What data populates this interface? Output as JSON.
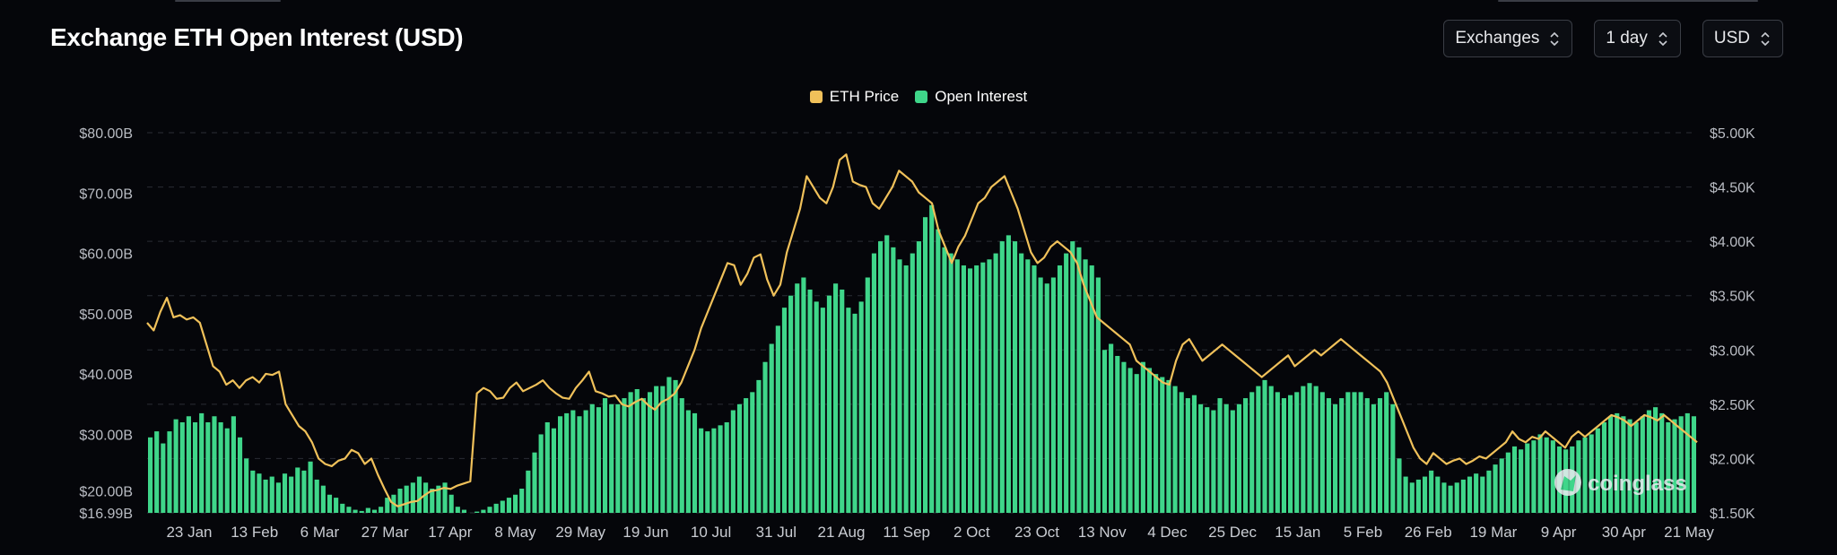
{
  "header": {
    "title": "Exchange ETH Open Interest (USD)",
    "controls": [
      {
        "label": "Exchanges"
      },
      {
        "label": "1 day"
      },
      {
        "label": "USD"
      }
    ]
  },
  "colors": {
    "price": "#f0c15a",
    "open_interest": "#3fd68a",
    "grid": "#2a2d35"
  },
  "watermark": {
    "text": "coinglass",
    "icon": "coinglass-logo-icon"
  },
  "chart_data": {
    "type": "bar",
    "legend_position": "top-center",
    "series": [
      {
        "name": "Open Interest",
        "type": "bar",
        "axis": "left",
        "values": [
          29.5,
          30.5,
          28.5,
          30.5,
          32.5,
          32,
          33,
          32,
          33.5,
          32,
          33,
          32,
          31,
          33,
          29.5,
          26,
          24,
          23.5,
          22.5,
          23,
          22,
          23.5,
          23,
          24.5,
          24,
          25.5,
          22.5,
          21.5,
          20,
          19.5,
          18.5,
          18,
          17.5,
          17.3,
          17.8,
          17.5,
          18,
          19.5,
          20,
          21,
          21.5,
          22,
          23,
          22,
          21,
          21.5,
          22,
          20,
          18,
          17.5,
          17,
          17.2,
          17.5,
          18,
          18.5,
          19,
          19.5,
          20,
          21,
          24,
          27,
          30,
          32,
          31,
          33,
          33.5,
          34,
          33,
          34,
          35,
          34.5,
          36,
          35,
          35,
          36,
          37,
          37.5,
          36,
          37,
          38,
          38,
          39.5,
          39,
          36,
          34,
          33.5,
          31,
          30.5,
          31,
          31.5,
          32,
          34,
          35,
          36,
          37,
          39,
          42,
          45,
          48,
          51,
          53,
          55,
          56,
          54,
          52,
          51,
          53,
          55,
          54,
          51,
          50,
          52,
          56,
          60,
          62,
          63,
          61,
          59,
          58,
          60,
          62,
          66,
          68,
          64,
          61,
          60,
          59,
          58,
          57.5,
          58,
          58.5,
          59,
          60,
          62,
          63,
          62,
          60,
          59,
          58,
          56,
          55,
          56,
          58,
          60,
          62,
          61,
          59,
          58,
          56,
          44,
          45,
          43,
          42,
          41,
          40,
          42,
          41,
          40,
          39.5,
          39,
          38,
          37,
          36,
          36.5,
          35,
          34.5,
          34,
          36,
          35,
          34,
          35,
          36,
          37,
          38,
          39,
          38,
          37,
          36,
          36.5,
          37,
          38,
          38.5,
          38,
          37,
          36,
          35,
          36,
          37,
          37,
          37,
          36,
          35,
          36,
          37,
          35,
          26,
          23,
          22,
          22.5,
          23,
          24,
          23,
          22,
          21.5,
          22,
          22.5,
          23,
          23.5,
          23,
          24,
          25,
          26,
          27,
          28,
          27.5,
          28.5,
          29,
          30,
          29.5,
          29,
          28,
          27.5,
          28,
          29,
          29.5,
          30,
          31,
          32,
          33,
          33.5,
          33,
          32.5,
          32,
          33,
          34,
          34.5,
          33.5,
          32,
          32.5,
          33,
          33.5,
          33
        ]
      },
      {
        "name": "ETH Price",
        "type": "line",
        "axis": "right",
        "values": [
          3250,
          3180,
          3350,
          3480,
          3300,
          3320,
          3280,
          3300,
          3250,
          3050,
          2850,
          2800,
          2680,
          2720,
          2650,
          2720,
          2750,
          2700,
          2780,
          2770,
          2800,
          2500,
          2400,
          2300,
          2250,
          2150,
          2000,
          1950,
          1930,
          1980,
          2000,
          2080,
          2050,
          1950,
          2000,
          1850,
          1720,
          1600,
          1560,
          1580,
          1600,
          1610,
          1660,
          1700,
          1710,
          1730,
          1720,
          1750,
          1770,
          1790,
          2600,
          2650,
          2620,
          2550,
          2560,
          2650,
          2700,
          2620,
          2650,
          2680,
          2720,
          2650,
          2600,
          2560,
          2550,
          2650,
          2720,
          2800,
          2620,
          2600,
          2570,
          2580,
          2500,
          2480,
          2520,
          2550,
          2490,
          2450,
          2520,
          2550,
          2600,
          2700,
          2850,
          3000,
          3200,
          3350,
          3500,
          3650,
          3800,
          3780,
          3600,
          3700,
          3850,
          3880,
          3650,
          3500,
          3600,
          3900,
          4100,
          4300,
          4600,
          4500,
          4400,
          4350,
          4500,
          4750,
          4800,
          4550,
          4520,
          4500,
          4350,
          4300,
          4400,
          4500,
          4650,
          4600,
          4550,
          4450,
          4400,
          4350,
          4100,
          3950,
          3800,
          3950,
          4050,
          4200,
          4350,
          4400,
          4500,
          4550,
          4600,
          4450,
          4300,
          4100,
          3900,
          3800,
          3850,
          3950,
          4000,
          3950,
          3900,
          3800,
          3600,
          3450,
          3300,
          3250,
          3200,
          3150,
          3100,
          3050,
          2900,
          2850,
          2800,
          2750,
          2700,
          2680,
          2900,
          3050,
          3100,
          3000,
          2900,
          2950,
          3000,
          3050,
          3000,
          2950,
          2900,
          2850,
          2800,
          2750,
          2800,
          2850,
          2900,
          2950,
          2850,
          2900,
          2950,
          3000,
          2950,
          3000,
          3050,
          3100,
          3050,
          3000,
          2950,
          2900,
          2850,
          2800,
          2700,
          2550,
          2400,
          2250,
          2100,
          2000,
          1950,
          2050,
          2000,
          1950,
          1980,
          2000,
          1950,
          1980,
          2020,
          2000,
          2050,
          2100,
          2150,
          2250,
          2180,
          2150,
          2200,
          2180,
          2250,
          2200,
          2150,
          2100,
          2200,
          2250,
          2200,
          2250,
          2300,
          2350,
          2400,
          2380,
          2350,
          2300,
          2350,
          2400,
          2380,
          2350,
          2400,
          2350,
          2300,
          2250,
          2200,
          2150
        ]
      }
    ],
    "x_tick_labels": [
      "23 Jan",
      "13 Feb",
      "6 Mar",
      "27 Mar",
      "17 Apr",
      "8 May",
      "29 May",
      "19 Jun",
      "10 Jul",
      "31 Jul",
      "21 Aug",
      "11 Sep",
      "2 Oct",
      "23 Oct",
      "13 Nov",
      "4 Dec",
      "25 Dec",
      "15 Jan",
      "5 Feb",
      "26 Feb",
      "19 Mar",
      "9 Apr",
      "30 Apr",
      "21 May"
    ],
    "y_left": {
      "ticks": [
        "$80.00B",
        "$70.00B",
        "$60.00B",
        "$50.00B",
        "$40.00B",
        "$30.00B",
        "$20.00B",
        "$16.99B"
      ],
      "min": 16.99,
      "max": 80
    },
    "y_right": {
      "ticks": [
        "$5.00K",
        "$4.50K",
        "$4.00K",
        "$3.50K",
        "$3.00K",
        "$2.50K",
        "$2.00K",
        "$1.50K"
      ],
      "min": 1500,
      "max": 5000
    },
    "grid": true
  }
}
